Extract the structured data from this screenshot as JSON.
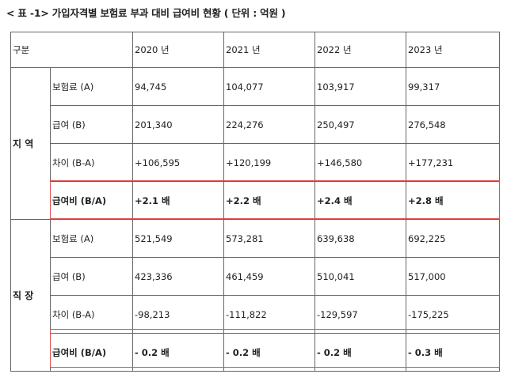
{
  "caption": "< 표 -1> 가입자격별 보험료 부과 대비 급여비 현황 ( 단위 : 억원 )",
  "table": {
    "corner": "구분",
    "years": [
      "2020 년",
      "2021 년",
      "2022 년",
      "2023 년"
    ],
    "groups": [
      {
        "name": "지 역",
        "rows": [
          {
            "label": "보험료 (A)",
            "values": [
              "94,745",
              "104,077",
              "103,917",
              "99,317"
            ]
          },
          {
            "label": "급여 (B)",
            "values": [
              "201,340",
              "224,276",
              "250,497",
              "276,548"
            ]
          },
          {
            "label": "차이 (B-A)",
            "values": [
              "+106,595",
              "+120,199",
              "+146,580",
              "+177,231"
            ]
          },
          {
            "label": "급여비 (B/A)",
            "values": [
              "+2.1 배",
              "+2.2 배",
              "+2.4 배",
              "+2.8 배"
            ]
          }
        ]
      },
      {
        "name": "직 장",
        "rows": [
          {
            "label": "보험료 (A)",
            "values": [
              "521,549",
              "573,281",
              "639,638",
              "692,225"
            ]
          },
          {
            "label": "급여 (B)",
            "values": [
              "423,336",
              "461,459",
              "510,041",
              "517,000"
            ]
          },
          {
            "label": "차이 (B-A)",
            "values": [
              "-98,213",
              "-111,822",
              "-129,597",
              "-175,225"
            ]
          },
          {
            "label": "급여비 (B/A)",
            "values": [
              "- 0.2 배",
              "- 0.2 배",
              "- 0.2 배",
              "- 0.3 배"
            ]
          }
        ]
      }
    ]
  },
  "highlight_color": "#d9534f"
}
